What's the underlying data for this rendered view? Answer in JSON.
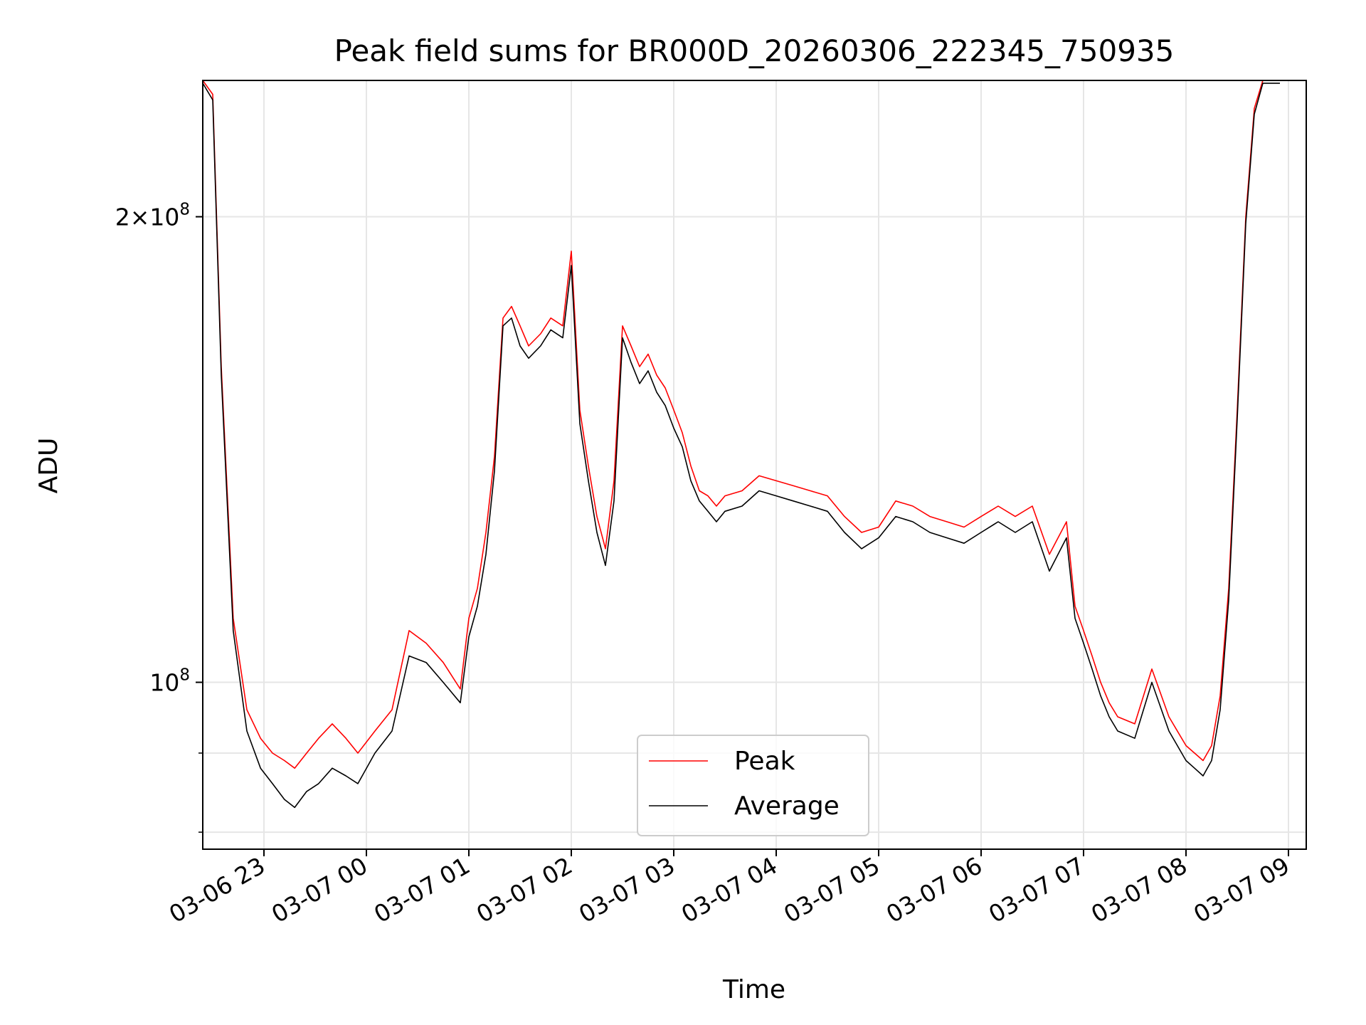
{
  "chart_data": {
    "type": "line",
    "title": "Peak field sums for BR000D_20260306_222345_750935",
    "xlabel": "Time",
    "ylabel": "ADU",
    "y_scale": "log",
    "ylim": [
      78000000,
      245000000
    ],
    "x_tick_labels": [
      "03-06 23",
      "03-07 00",
      "03-07 01",
      "03-07 02",
      "03-07 03",
      "03-07 04",
      "03-07 05",
      "03-07 06",
      "03-07 07",
      "03-07 08",
      "03-07 09"
    ],
    "y_ticks": [
      {
        "value": 100000000,
        "base": "10",
        "exp": "8"
      },
      {
        "value": 200000000,
        "mant": "2",
        "base": "10",
        "exp": "8"
      }
    ],
    "grid": true,
    "legend": {
      "position": "lower-center",
      "entries": [
        "Peak",
        "Average"
      ]
    },
    "series": [
      {
        "name": "Peak",
        "color": "#ff0000",
        "x": [
          "03-06 22:24",
          "03-06 22:30",
          "03-06 22:35",
          "03-06 22:42",
          "03-06 22:50",
          "03-06 22:58",
          "03-06 23:05",
          "03-06 23:12",
          "03-06 23:18",
          "03-06 23:25",
          "03-06 23:32",
          "03-06 23:40",
          "03-06 23:48",
          "03-06 23:55",
          "03-07 00:05",
          "03-07 00:15",
          "03-07 00:25",
          "03-07 00:35",
          "03-07 00:45",
          "03-07 00:55",
          "03-07 01:00",
          "03-07 01:05",
          "03-07 01:10",
          "03-07 01:15",
          "03-07 01:20",
          "03-07 01:25",
          "03-07 01:30",
          "03-07 01:35",
          "03-07 01:42",
          "03-07 01:48",
          "03-07 01:55",
          "03-07 02:00",
          "03-07 02:05",
          "03-07 02:10",
          "03-07 02:15",
          "03-07 02:20",
          "03-07 02:25",
          "03-07 02:30",
          "03-07 02:35",
          "03-07 02:40",
          "03-07 02:45",
          "03-07 02:50",
          "03-07 02:55",
          "03-07 03:00",
          "03-07 03:05",
          "03-07 03:10",
          "03-07 03:15",
          "03-07 03:20",
          "03-07 03:25",
          "03-07 03:30",
          "03-07 03:40",
          "03-07 03:50",
          "03-07 04:00",
          "03-07 04:10",
          "03-07 04:20",
          "03-07 04:30",
          "03-07 04:40",
          "03-07 04:50",
          "03-07 05:00",
          "03-07 05:10",
          "03-07 05:20",
          "03-07 05:30",
          "03-07 05:40",
          "03-07 05:50",
          "03-07 06:00",
          "03-07 06:10",
          "03-07 06:20",
          "03-07 06:30",
          "03-07 06:40",
          "03-07 06:50",
          "03-07 06:55",
          "03-07 07:00",
          "03-07 07:05",
          "03-07 07:10",
          "03-07 07:15",
          "03-07 07:20",
          "03-07 07:30",
          "03-07 07:40",
          "03-07 07:50",
          "03-07 08:00",
          "03-07 08:05",
          "03-07 08:10",
          "03-07 08:15",
          "03-07 08:20",
          "03-07 08:25",
          "03-07 08:30",
          "03-07 08:35",
          "03-07 08:40",
          "03-07 08:45",
          "03-07 08:50",
          "03-07 08:55"
        ],
        "values": [
          245000000,
          240000000,
          160000000,
          110000000,
          96000000,
          92000000,
          90000000,
          89000000,
          88000000,
          90000000,
          92000000,
          94000000,
          92000000,
          90000000,
          93000000,
          96000000,
          108000000,
          106000000,
          103000000,
          99000000,
          110000000,
          115000000,
          125000000,
          140000000,
          172000000,
          175000000,
          170000000,
          165000000,
          168000000,
          172000000,
          170000000,
          190000000,
          150000000,
          138000000,
          128000000,
          122000000,
          135000000,
          170000000,
          165000000,
          160000000,
          163000000,
          158000000,
          155000000,
          150000000,
          145000000,
          138000000,
          133000000,
          132000000,
          130000000,
          132000000,
          133000000,
          136000000,
          135000000,
          134000000,
          133000000,
          132000000,
          128000000,
          125000000,
          126000000,
          131000000,
          130000000,
          128000000,
          127000000,
          126000000,
          128000000,
          130000000,
          128000000,
          130000000,
          121000000,
          127000000,
          112000000,
          108000000,
          104000000,
          100000000,
          97000000,
          95000000,
          94000000,
          102000000,
          95000000,
          91000000,
          90000000,
          89000000,
          91000000,
          98000000,
          115000000,
          150000000,
          200000000,
          235000000,
          245000000,
          245000000,
          245000000
        ]
      },
      {
        "name": "Average",
        "color": "#000000",
        "x": [
          "03-06 22:24",
          "03-06 22:30",
          "03-06 22:35",
          "03-06 22:42",
          "03-06 22:50",
          "03-06 22:58",
          "03-06 23:05",
          "03-06 23:12",
          "03-06 23:18",
          "03-06 23:25",
          "03-06 23:32",
          "03-06 23:40",
          "03-06 23:48",
          "03-06 23:55",
          "03-07 00:05",
          "03-07 00:15",
          "03-07 00:25",
          "03-07 00:35",
          "03-07 00:45",
          "03-07 00:55",
          "03-07 01:00",
          "03-07 01:05",
          "03-07 01:10",
          "03-07 01:15",
          "03-07 01:20",
          "03-07 01:25",
          "03-07 01:30",
          "03-07 01:35",
          "03-07 01:42",
          "03-07 01:48",
          "03-07 01:55",
          "03-07 02:00",
          "03-07 02:05",
          "03-07 02:10",
          "03-07 02:15",
          "03-07 02:20",
          "03-07 02:25",
          "03-07 02:30",
          "03-07 02:35",
          "03-07 02:40",
          "03-07 02:45",
          "03-07 02:50",
          "03-07 02:55",
          "03-07 03:00",
          "03-07 03:05",
          "03-07 03:10",
          "03-07 03:15",
          "03-07 03:20",
          "03-07 03:25",
          "03-07 03:30",
          "03-07 03:40",
          "03-07 03:50",
          "03-07 04:00",
          "03-07 04:10",
          "03-07 04:20",
          "03-07 04:30",
          "03-07 04:40",
          "03-07 04:50",
          "03-07 05:00",
          "03-07 05:10",
          "03-07 05:20",
          "03-07 05:30",
          "03-07 05:40",
          "03-07 05:50",
          "03-07 06:00",
          "03-07 06:10",
          "03-07 06:20",
          "03-07 06:30",
          "03-07 06:40",
          "03-07 06:50",
          "03-07 06:55",
          "03-07 07:00",
          "03-07 07:05",
          "03-07 07:10",
          "03-07 07:15",
          "03-07 07:20",
          "03-07 07:30",
          "03-07 07:40",
          "03-07 07:50",
          "03-07 08:00",
          "03-07 08:05",
          "03-07 08:10",
          "03-07 08:15",
          "03-07 08:20",
          "03-07 08:25",
          "03-07 08:30",
          "03-07 08:35",
          "03-07 08:40",
          "03-07 08:45",
          "03-07 08:50",
          "03-07 08:55"
        ],
        "values": [
          244000000,
          238000000,
          158000000,
          108000000,
          93000000,
          88000000,
          86000000,
          84000000,
          83000000,
          85000000,
          86000000,
          88000000,
          87000000,
          86000000,
          90000000,
          93000000,
          104000000,
          103000000,
          100000000,
          97000000,
          107000000,
          112000000,
          121000000,
          137000000,
          170000000,
          172000000,
          165000000,
          162000000,
          165000000,
          169000000,
          167000000,
          186000000,
          147000000,
          135000000,
          125000000,
          119000000,
          131000000,
          167000000,
          161000000,
          156000000,
          159000000,
          154000000,
          151000000,
          146000000,
          142000000,
          135000000,
          131000000,
          129000000,
          127000000,
          129000000,
          130000000,
          133000000,
          132000000,
          131000000,
          130000000,
          129000000,
          125000000,
          122000000,
          124000000,
          128000000,
          127000000,
          125000000,
          124000000,
          123000000,
          125000000,
          127000000,
          125000000,
          127000000,
          118000000,
          124000000,
          110000000,
          106000000,
          102000000,
          98000000,
          95000000,
          93000000,
          92000000,
          100000000,
          93000000,
          89000000,
          88000000,
          87000000,
          89000000,
          96000000,
          113000000,
          148000000,
          198000000,
          233000000,
          244000000,
          244000000,
          244000000
        ]
      }
    ]
  }
}
